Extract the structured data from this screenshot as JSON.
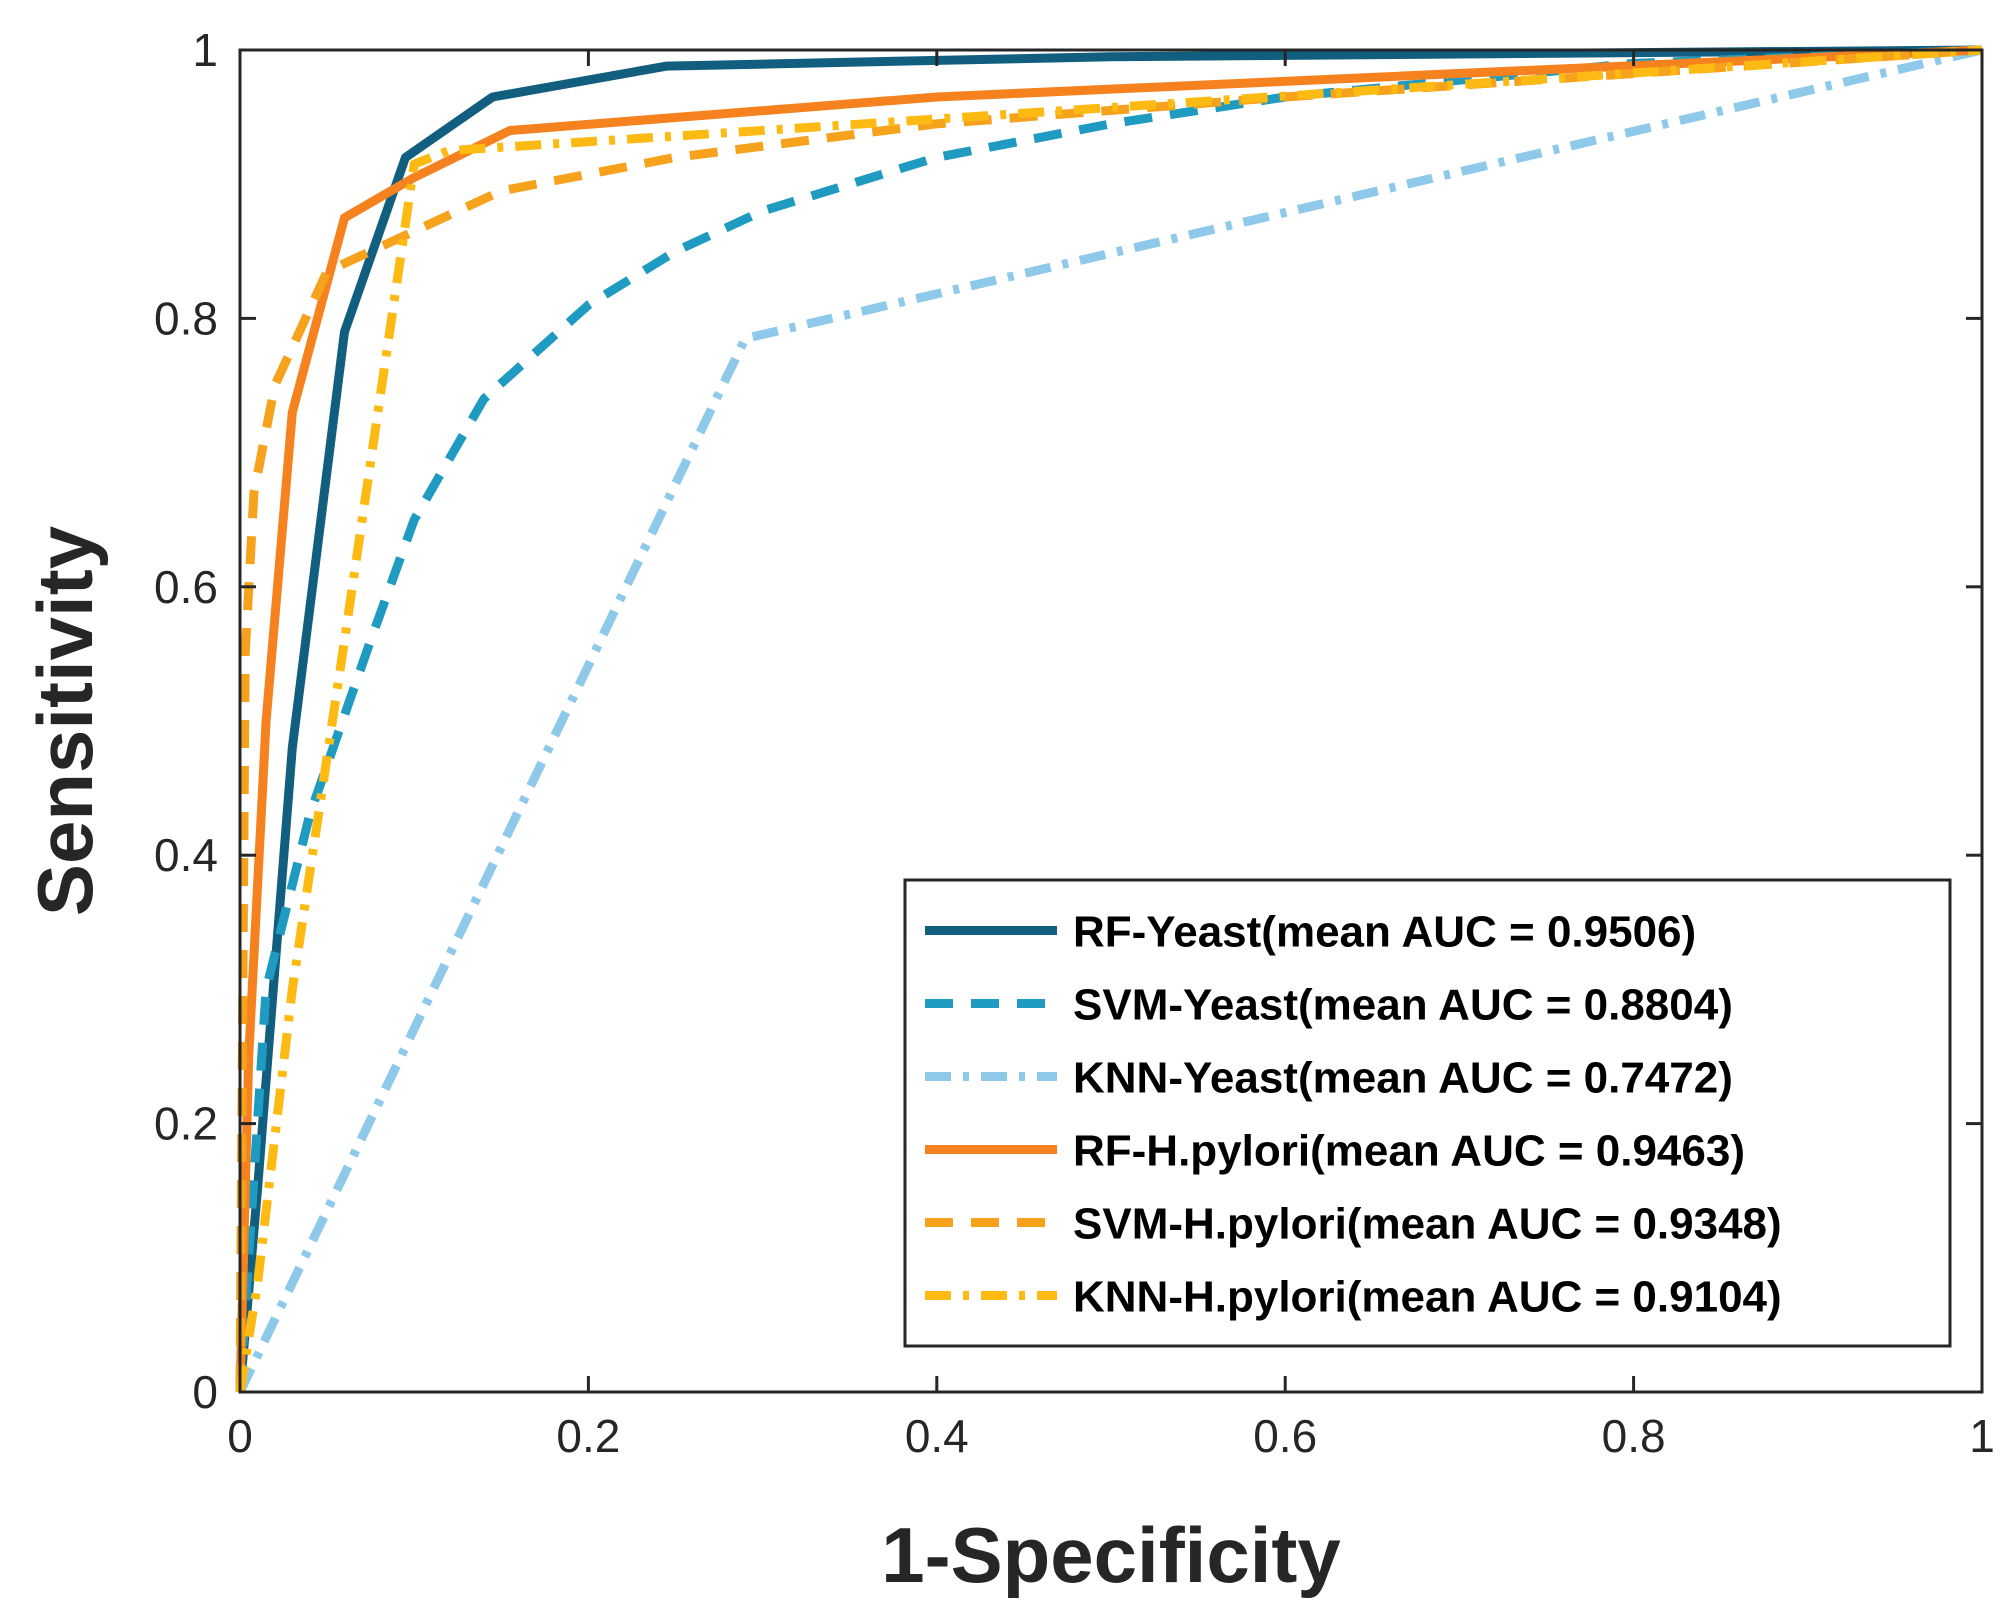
{
  "chart_data": {
    "type": "line",
    "xlabel": "1-Specificity",
    "ylabel": "Sensitivity",
    "xlim": [
      0,
      1
    ],
    "ylim": [
      0,
      1
    ],
    "xticks": [
      "0",
      "0.2",
      "0.4",
      "0.6",
      "0.8",
      "1"
    ],
    "yticks": [
      "0",
      "0.2",
      "0.4",
      "0.6",
      "0.8",
      "1"
    ],
    "grid": false,
    "legend_position": "bottom-right",
    "series": [
      {
        "name": "RF-Yeast(mean AUC = 0.9506)",
        "color": "#125e7e",
        "dash": "solid",
        "x": [
          0,
          0.01,
          0.03,
          0.06,
          0.095,
          0.145,
          0.245,
          0.5,
          1.0
        ],
        "y": [
          0,
          0.15,
          0.48,
          0.79,
          0.92,
          0.965,
          0.988,
          0.995,
          1.0
        ]
      },
      {
        "name": "SVM-Yeast(mean AUC = 0.8804)",
        "color": "#1f9bc1",
        "dash": "dashed",
        "x": [
          0,
          0.015,
          0.04,
          0.075,
          0.1,
          0.14,
          0.2,
          0.25,
          0.3,
          0.4,
          0.5,
          0.6,
          0.8,
          1.0
        ],
        "y": [
          0,
          0.3,
          0.43,
          0.56,
          0.65,
          0.74,
          0.81,
          0.85,
          0.88,
          0.92,
          0.945,
          0.965,
          0.99,
          1.0
        ]
      },
      {
        "name": "KNN-Yeast(mean AUC = 0.7472)",
        "color": "#8ec9ea",
        "dash": "dashdot",
        "x": [
          0,
          0.29,
          1.0
        ],
        "y": [
          0,
          0.785,
          1.0
        ]
      },
      {
        "name": "RF-H.pylori(mean AUC = 0.9463)",
        "color": "#f5821f",
        "dash": "solid",
        "x": [
          0,
          0.005,
          0.015,
          0.03,
          0.06,
          0.1,
          0.155,
          0.4,
          1.0
        ],
        "y": [
          0,
          0.25,
          0.5,
          0.73,
          0.875,
          0.905,
          0.94,
          0.965,
          1.0
        ]
      },
      {
        "name": "SVM-H.pylori(mean AUC = 0.9348)",
        "color": "#f7a21d",
        "dash": "dashed",
        "x": [
          0,
          0.003,
          0.008,
          0.02,
          0.05,
          0.1,
          0.15,
          0.25,
          0.4,
          0.6,
          1.0
        ],
        "y": [
          0,
          0.55,
          0.67,
          0.75,
          0.835,
          0.865,
          0.895,
          0.92,
          0.945,
          0.965,
          1.0
        ]
      },
      {
        "name": "KNN-H.pylori(mean AUC = 0.9104)",
        "color": "#fdba12",
        "dash": "dashdot",
        "x": [
          0,
          0.01,
          0.03,
          0.06,
          0.1,
          0.12,
          0.3,
          1.0
        ],
        "y": [
          0,
          0.08,
          0.3,
          0.56,
          0.915,
          0.925,
          0.94,
          1.0
        ]
      }
    ]
  }
}
